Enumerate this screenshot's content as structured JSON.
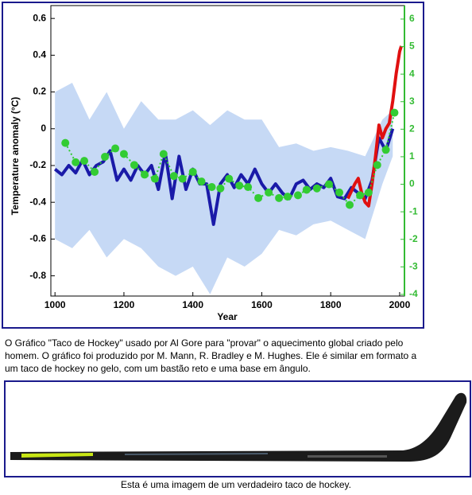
{
  "chart_data": {
    "type": "line",
    "xlabel": "Year",
    "ylabel": "Temperature anomaly (°C)",
    "xlim": [
      988,
      2014
    ],
    "xticks": [
      1000,
      1200,
      1400,
      1600,
      1800,
      2000
    ],
    "ylim": [
      -0.91,
      0.67
    ],
    "yticks": [
      -0.8,
      -0.6,
      -0.4,
      -0.2,
      0,
      0.2,
      0.4,
      0.6
    ],
    "y2lim": [
      -4.06,
      6.49
    ],
    "y2ticks": [
      -4,
      -3,
      -2,
      -1,
      0,
      1,
      2,
      3,
      4,
      5,
      6
    ],
    "y2color": "#33bb33",
    "band": {
      "color": "#c6d9f5",
      "x": [
        1000,
        1050,
        1100,
        1150,
        1200,
        1250,
        1300,
        1350,
        1400,
        1450,
        1500,
        1550,
        1600,
        1650,
        1700,
        1750,
        1800,
        1850,
        1900,
        1950,
        1980
      ],
      "upper": [
        0.2,
        0.25,
        0.05,
        0.2,
        0.0,
        0.15,
        0.05,
        0.05,
        0.1,
        0.02,
        0.1,
        0.05,
        0.05,
        -0.1,
        -0.08,
        -0.12,
        -0.1,
        -0.12,
        -0.15,
        0.05,
        0.1
      ],
      "lower": [
        -0.6,
        -0.65,
        -0.55,
        -0.7,
        -0.6,
        -0.65,
        -0.75,
        -0.8,
        -0.75,
        -0.9,
        -0.7,
        -0.75,
        -0.68,
        -0.55,
        -0.58,
        -0.52,
        -0.5,
        -0.55,
        -0.6,
        -0.3,
        -0.15
      ]
    },
    "series": [
      {
        "color": "#1a1aa8",
        "width": 4,
        "x": [
          1000,
          1020,
          1040,
          1060,
          1080,
          1100,
          1120,
          1140,
          1160,
          1180,
          1200,
          1220,
          1240,
          1260,
          1280,
          1300,
          1320,
          1340,
          1360,
          1380,
          1400,
          1420,
          1440,
          1460,
          1480,
          1500,
          1520,
          1540,
          1560,
          1580,
          1600,
          1620,
          1640,
          1660,
          1680,
          1700,
          1720,
          1740,
          1760,
          1780,
          1800,
          1820,
          1840,
          1860,
          1880,
          1900,
          1920,
          1940,
          1960,
          1980
        ],
        "values": [
          -0.22,
          -0.25,
          -0.2,
          -0.24,
          -0.17,
          -0.25,
          -0.2,
          -0.18,
          -0.12,
          -0.28,
          -0.22,
          -0.28,
          -0.2,
          -0.25,
          -0.2,
          -0.33,
          -0.13,
          -0.38,
          -0.15,
          -0.33,
          -0.22,
          -0.3,
          -0.3,
          -0.52,
          -0.3,
          -0.25,
          -0.32,
          -0.25,
          -0.3,
          -0.22,
          -0.3,
          -0.35,
          -0.3,
          -0.35,
          -0.38,
          -0.3,
          -0.28,
          -0.33,
          -0.3,
          -0.32,
          -0.27,
          -0.37,
          -0.38,
          -0.32,
          -0.35,
          -0.38,
          -0.28,
          -0.05,
          -0.12,
          0.0
        ]
      },
      {
        "color": "#e01010",
        "width": 4,
        "x": [
          1850,
          1870,
          1880,
          1890,
          1900,
          1910,
          1920,
          1930,
          1940,
          1950,
          1960,
          1970,
          1980,
          1990,
          2000,
          2005
        ],
        "values": [
          -0.38,
          -0.3,
          -0.27,
          -0.35,
          -0.4,
          -0.42,
          -0.3,
          -0.15,
          0.02,
          -0.05,
          0.0,
          0.03,
          0.15,
          0.3,
          0.42,
          0.45
        ]
      },
      {
        "color": "#33cc33",
        "width": 2,
        "dashed": true,
        "markers": true,
        "axis": "y2",
        "x": [
          1030,
          1060,
          1085,
          1115,
          1145,
          1175,
          1200,
          1230,
          1260,
          1290,
          1315,
          1345,
          1370,
          1400,
          1425,
          1455,
          1480,
          1505,
          1535,
          1560,
          1590,
          1620,
          1650,
          1675,
          1705,
          1730,
          1760,
          1795,
          1825,
          1855,
          1885,
          1910,
          1935,
          1960,
          1985
        ],
        "values": [
          1.5,
          0.8,
          0.85,
          0.45,
          1.0,
          1.3,
          1.1,
          0.7,
          0.35,
          0.2,
          1.1,
          0.3,
          0.2,
          0.45,
          0.1,
          -0.1,
          -0.15,
          0.2,
          -0.05,
          -0.1,
          -0.5,
          -0.3,
          -0.5,
          -0.45,
          -0.4,
          -0.2,
          -0.15,
          0.0,
          -0.3,
          -0.75,
          -0.4,
          -0.3,
          0.7,
          1.25,
          2.6
        ]
      }
    ]
  },
  "caption_top": "O Gráfico \"Taco de Hockey\" usado por Al Gore para \"provar\" o aquecimento global criado pelo homem. O gráfico foi produzido por M. Mann, R. Bradley e M. Hughes. Ele é similar em formato a um taco de hockey no gelo, com um bastão reto e uma base em ângulo.",
  "caption_bottom": "Esta é uma imagem de um verdadeiro taco de hockey."
}
